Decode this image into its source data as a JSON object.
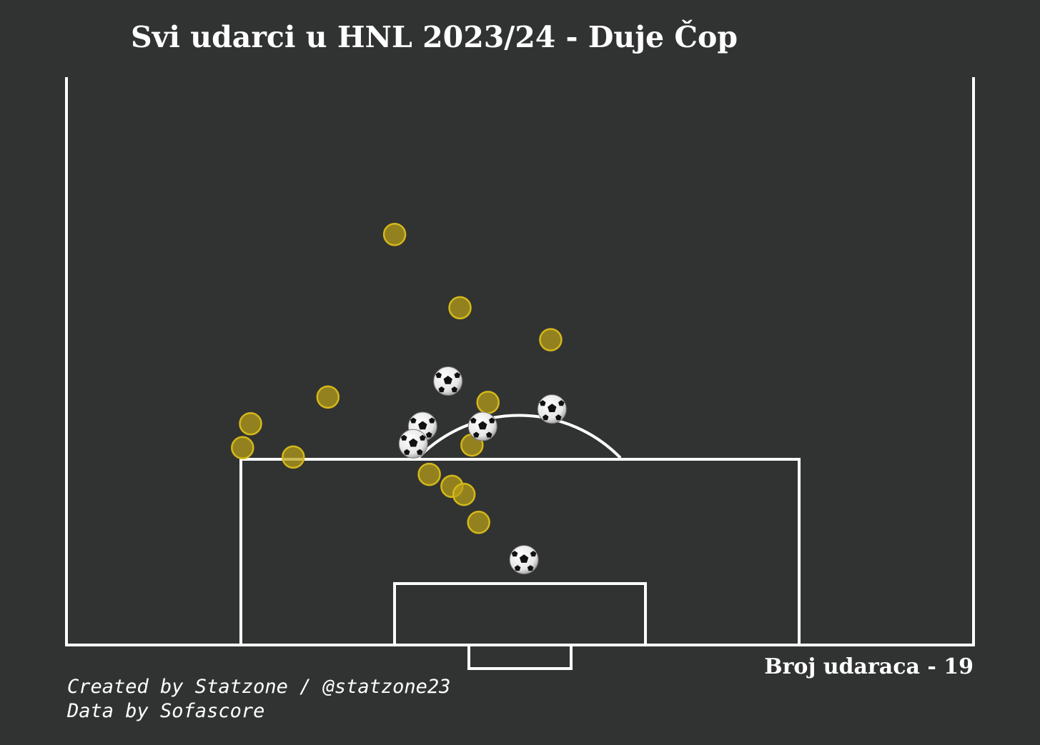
{
  "title": "Svi udarci u HNL 2023/24 - Duje Čop",
  "shot_count_text": "Broj udaraca - 19",
  "credits": {
    "created": "Created by Statzone / @statzone23",
    "data": "Data by Sofascore"
  },
  "colors": {
    "background": "#313332",
    "lines": "#ffffff",
    "shot_fill": "#b8a016",
    "shot_edge": "#d4b81a"
  },
  "chart_data": {
    "type": "scatter",
    "title": "Svi udarci u HNL 2023/24 - Duje Čop",
    "pitch": "half-pitch, vertical, goal at bottom",
    "legend": "none",
    "grid": false,
    "series": [
      {
        "name": "",
        "marker": "circle",
        "color": "#b8a016",
        "points": [
          {
            "x": 43.4,
            "y": 74.2
          },
          {
            "x": 38.5,
            "y": 79.7
          },
          {
            "x": 48.4,
            "y": 86.4
          },
          {
            "x": 54.8,
            "y": 90.2
          },
          {
            "x": 51.0,
            "y": 90.9
          },
          {
            "x": 36.4,
            "y": 86.8
          },
          {
            "x": 31.7,
            "y": 82.1
          },
          {
            "x": 37.6,
            "y": 90.0
          },
          {
            "x": 40.8,
            "y": 92.2
          },
          {
            "x": 39.1,
            "y": 93.1
          },
          {
            "x": 38.2,
            "y": 93.7
          },
          {
            "x": 37.1,
            "y": 95.8
          },
          {
            "x": 54.2,
            "y": 88.4
          }
        ]
      },
      {
        "name": "",
        "marker": "football",
        "points": [
          {
            "x": 39.4,
            "y": 85.2
          },
          {
            "x": 31.6,
            "y": 87.3
          },
          {
            "x": 36.8,
            "y": 88.6
          },
          {
            "x": 41.3,
            "y": 88.6
          },
          {
            "x": 42.0,
            "y": 89.9
          },
          {
            "x": 33.7,
            "y": 98.6
          }
        ]
      }
    ]
  }
}
